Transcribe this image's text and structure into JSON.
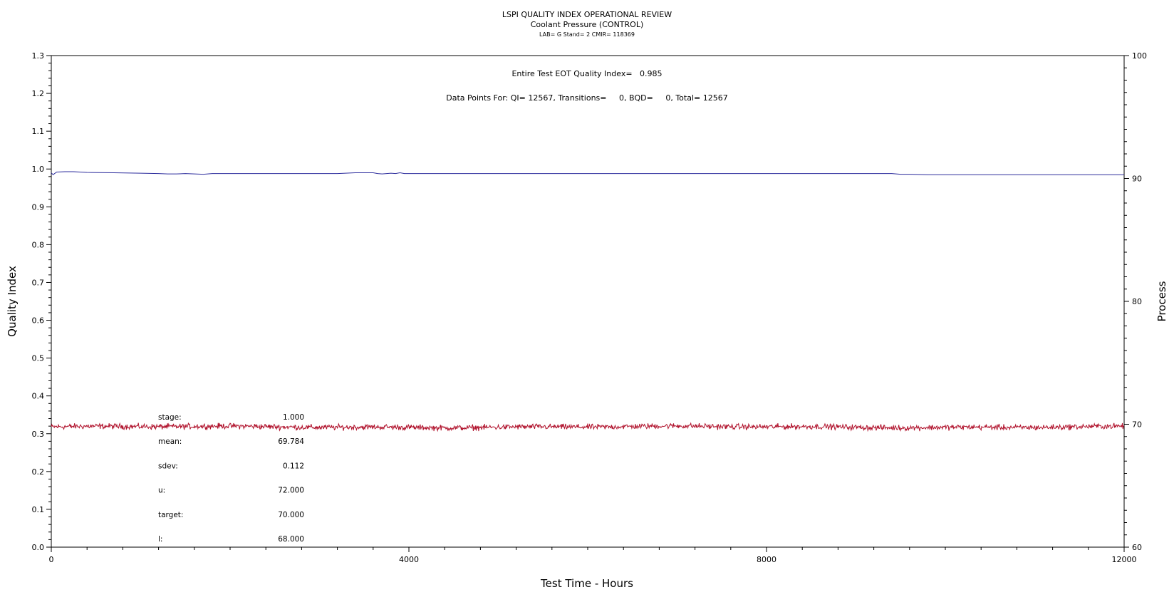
{
  "chart_data": {
    "type": "line",
    "title": "LSPI QUALITY INDEX OPERATIONAL REVIEW",
    "subtitle": "Coolant Pressure (CONTROL)",
    "subtitle2": "LAB= G Stand= 2 CMIR= 118369",
    "xlabel": "Test Time - Hours",
    "ylabel": "Quality Index",
    "y2label": "Process",
    "xlim": [
      0,
      12000
    ],
    "ylim": [
      0,
      1.3
    ],
    "y2lim": [
      60,
      100
    ],
    "x_ticks": [
      0,
      4000,
      8000,
      12000
    ],
    "y_ticks": [
      "0.0",
      "0.1",
      "0.2",
      "0.3",
      "0.4",
      "0.5",
      "0.6",
      "0.7",
      "0.8",
      "0.9",
      "1.0",
      "1.1",
      "1.2",
      "1.3"
    ],
    "y2_ticks": [
      60,
      70,
      80,
      90,
      100
    ],
    "annotations": {
      "eot_quality_index": "Entire Test EOT Quality Index=   0.985",
      "data_points": "Data Points For: QI= 12567, Transitions=     0, BQD=     0, Total= 12567"
    },
    "stats": [
      {
        "label": "stage:",
        "value": "1.000"
      },
      {
        "label": "mean:",
        "value": "69.784"
      },
      {
        "label": "sdev:",
        "value": "0.112"
      },
      {
        "label": "u:",
        "value": "72.000"
      },
      {
        "label": "target:",
        "value": "70.000"
      },
      {
        "label": "l:",
        "value": "68.000"
      }
    ],
    "series": [
      {
        "axis": "left",
        "color": "#2b2b9c",
        "x": [
          0,
          20,
          60,
          150,
          250,
          400,
          700,
          1000,
          1200,
          1300,
          1400,
          1500,
          1600,
          1700,
          1800,
          2000,
          2400,
          2800,
          3200,
          3400,
          3500,
          3600,
          3650,
          3700,
          3800,
          3850,
          3900,
          3950,
          4200,
          5000,
          6000,
          7000,
          8000,
          9000,
          9400,
          9500,
          9600,
          9800,
          10500,
          11200,
          12000
        ],
        "values": [
          0.99,
          0.985,
          0.992,
          0.993,
          0.993,
          0.991,
          0.99,
          0.989,
          0.988,
          0.987,
          0.987,
          0.988,
          0.987,
          0.986,
          0.988,
          0.988,
          0.988,
          0.988,
          0.988,
          0.99,
          0.99,
          0.99,
          0.988,
          0.987,
          0.989,
          0.988,
          0.99,
          0.988,
          0.988,
          0.988,
          0.988,
          0.988,
          0.988,
          0.988,
          0.988,
          0.986,
          0.986,
          0.985,
          0.985,
          0.985,
          0.985
        ]
      },
      {
        "axis": "right",
        "color": "#b0112b",
        "mean": 69.784,
        "sdev": 0.112,
        "points": 12567
      }
    ],
    "grid": false,
    "legend": "none"
  }
}
